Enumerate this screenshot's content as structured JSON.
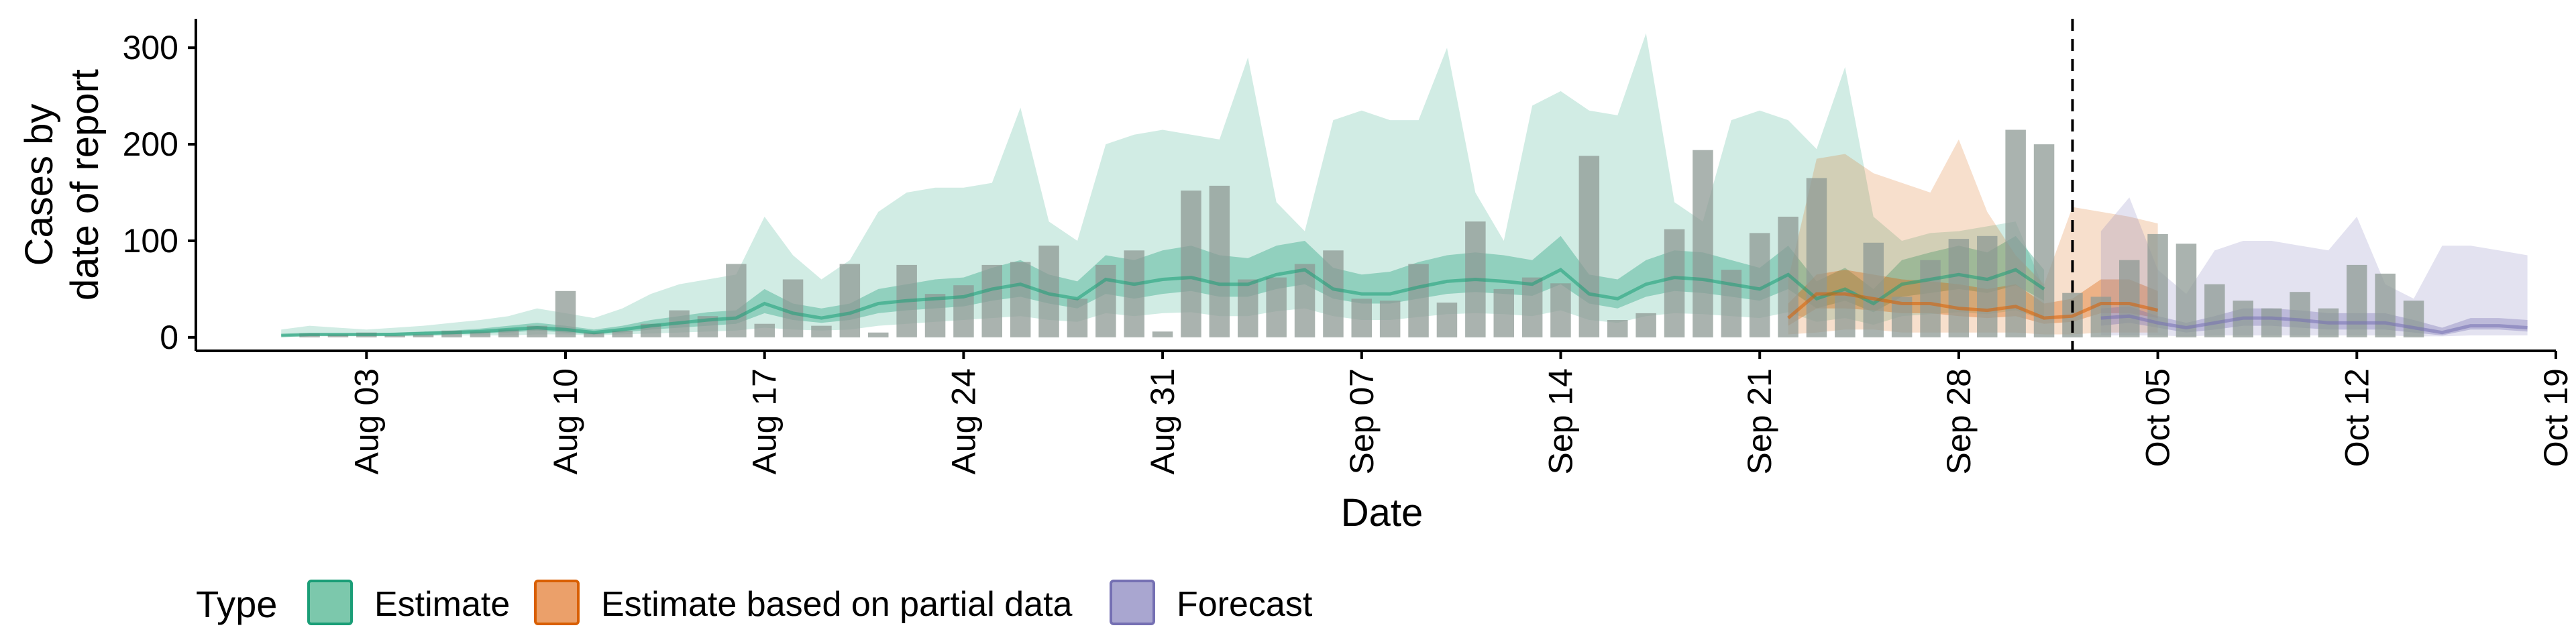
{
  "chart_data": {
    "type": "area",
    "xlabel": "Date",
    "ylabel": [
      "Cases by",
      "date of report"
    ],
    "ylim": [
      -14,
      330
    ],
    "y_ticks": [
      0,
      100,
      200,
      300
    ],
    "x_ticks": [
      {
        "date": "2020-08-03",
        "label": "Aug 03"
      },
      {
        "date": "2020-08-10",
        "label": "Aug 10"
      },
      {
        "date": "2020-08-17",
        "label": "Aug 17"
      },
      {
        "date": "2020-08-24",
        "label": "Aug 24"
      },
      {
        "date": "2020-08-31",
        "label": "Aug 31"
      },
      {
        "date": "2020-09-07",
        "label": "Sep 07"
      },
      {
        "date": "2020-09-14",
        "label": "Sep 14"
      },
      {
        "date": "2020-09-21",
        "label": "Sep 21"
      },
      {
        "date": "2020-09-28",
        "label": "Sep 28"
      },
      {
        "date": "2020-10-05",
        "label": "Oct 05"
      },
      {
        "date": "2020-10-12",
        "label": "Oct 12"
      },
      {
        "date": "2020-10-19",
        "label": "Oct 19"
      }
    ],
    "xlim": [
      "2020-07-28",
      "2020-10-19"
    ],
    "vline_date": "2020-10-02",
    "grid": false,
    "legend": {
      "title": "Type",
      "placement": "bottom",
      "items": [
        {
          "label": "Estimate",
          "fill": "#7cc8ac",
          "stroke": "#1b9e77"
        },
        {
          "label": "Estimate based on partial data",
          "fill": "#eba06a",
          "stroke": "#d95f02"
        },
        {
          "label": "Forecast",
          "fill": "#a9a6d0",
          "stroke": "#7570b3"
        }
      ]
    },
    "colors": {
      "estimate": "#1b9e77",
      "partial": "#d95f02",
      "forecast": "#7570b3",
      "bars": "#8e9a94"
    },
    "reported_cases": {
      "start": "2020-08-01",
      "values": [
        4,
        3,
        5,
        2,
        3,
        7,
        6,
        8,
        12,
        48,
        5,
        7,
        14,
        28,
        22,
        76,
        14,
        60,
        12,
        76,
        5,
        75,
        45,
        54,
        75,
        78,
        95,
        40,
        75,
        90,
        6,
        152,
        157,
        60,
        62,
        76,
        90,
        40,
        38,
        76,
        36,
        120,
        50,
        62,
        56,
        188,
        18,
        25,
        112,
        194,
        70,
        108,
        125,
        165,
        48,
        98,
        42,
        80,
        102,
        105,
        215,
        200,
        46,
        42,
        80,
        107,
        97,
        55,
        38,
        30,
        47,
        30,
        75,
        66,
        38
      ]
    },
    "series": [
      {
        "name": "Estimate",
        "start": "2020-07-31",
        "median": [
          2,
          3,
          3,
          3,
          3,
          4,
          5,
          6,
          8,
          10,
          8,
          5,
          8,
          12,
          15,
          18,
          20,
          35,
          25,
          20,
          25,
          35,
          38,
          40,
          42,
          50,
          55,
          45,
          40,
          60,
          55,
          60,
          62,
          55,
          55,
          65,
          70,
          50,
          45,
          45,
          52,
          58,
          60,
          58,
          55,
          70,
          45,
          40,
          55,
          62,
          60,
          55,
          50,
          65,
          40,
          50,
          35,
          55,
          60,
          65,
          60,
          70,
          50
        ],
        "q25": [
          1,
          2,
          2,
          2,
          2,
          3,
          3,
          4,
          5,
          7,
          5,
          3,
          5,
          8,
          10,
          12,
          14,
          25,
          18,
          15,
          18,
          25,
          28,
          30,
          32,
          38,
          42,
          35,
          30,
          45,
          40,
          45,
          48,
          42,
          42,
          50,
          55,
          40,
          35,
          35,
          40,
          45,
          47,
          45,
          43,
          55,
          35,
          30,
          42,
          48,
          46,
          42,
          38,
          50,
          30,
          38,
          26,
          42,
          46,
          50,
          46,
          54,
          38
        ],
        "q75": [
          3,
          4,
          4,
          4,
          5,
          6,
          7,
          9,
          12,
          15,
          12,
          8,
          12,
          18,
          22,
          26,
          28,
          50,
          35,
          30,
          35,
          50,
          55,
          60,
          62,
          72,
          80,
          65,
          58,
          85,
          80,
          90,
          95,
          85,
          82,
          95,
          100,
          72,
          65,
          68,
          78,
          85,
          88,
          85,
          80,
          105,
          65,
          60,
          80,
          90,
          88,
          80,
          72,
          95,
          58,
          72,
          50,
          80,
          88,
          95,
          88,
          105,
          70
        ],
        "q05": [
          0,
          1,
          1,
          1,
          1,
          1,
          2,
          2,
          2,
          3,
          3,
          2,
          3,
          4,
          5,
          6,
          7,
          10,
          8,
          7,
          8,
          12,
          14,
          16,
          18,
          20,
          22,
          18,
          16,
          25,
          22,
          25,
          26,
          22,
          22,
          27,
          30,
          22,
          18,
          18,
          21,
          24,
          25,
          24,
          22,
          28,
          18,
          15,
          22,
          25,
          24,
          22,
          20,
          26,
          16,
          20,
          13,
          22,
          24,
          26,
          24,
          28,
          18
        ],
        "q95": [
          8,
          12,
          10,
          8,
          10,
          12,
          15,
          18,
          22,
          30,
          25,
          20,
          30,
          45,
          55,
          60,
          65,
          125,
          85,
          60,
          80,
          130,
          150,
          155,
          155,
          160,
          238,
          120,
          100,
          200,
          210,
          215,
          210,
          205,
          290,
          140,
          110,
          225,
          235,
          225,
          225,
          300,
          150,
          100,
          240,
          255,
          235,
          230,
          315,
          140,
          120,
          225,
          235,
          225,
          195,
          280,
          125,
          100,
          108,
          110,
          115,
          120,
          50
        ]
      },
      {
        "name": "Estimate based on partial data",
        "start": "2020-09-22",
        "median": [
          20,
          45,
          45,
          40,
          35,
          35,
          30,
          28,
          32,
          20,
          22,
          35,
          35,
          28
        ],
        "q25": [
          12,
          30,
          30,
          28,
          25,
          25,
          22,
          20,
          22,
          14,
          16,
          25,
          25,
          20
        ],
        "q75": [
          35,
          65,
          70,
          65,
          60,
          58,
          55,
          50,
          55,
          35,
          40,
          60,
          60,
          48
        ],
        "q05": [
          3,
          5,
          8,
          8,
          5,
          5,
          5,
          5,
          5,
          3,
          3,
          5,
          5,
          5
        ],
        "q95": [
          60,
          185,
          190,
          170,
          160,
          150,
          205,
          130,
          85,
          55,
          135,
          130,
          125,
          118
        ]
      },
      {
        "name": "Forecast",
        "start": "2020-10-03",
        "median": [
          20,
          22,
          15,
          10,
          15,
          20,
          20,
          18,
          15,
          15,
          15,
          10,
          5,
          12,
          12,
          10
        ],
        "q25": [
          12,
          15,
          10,
          5,
          8,
          12,
          12,
          10,
          8,
          8,
          8,
          5,
          2,
          8,
          8,
          6
        ],
        "q75": [
          30,
          32,
          22,
          15,
          22,
          30,
          30,
          28,
          25,
          25,
          25,
          18,
          10,
          20,
          20,
          18
        ],
        "q05": [
          2,
          2,
          2,
          1,
          2,
          2,
          2,
          2,
          2,
          2,
          2,
          1,
          1,
          2,
          2,
          2
        ],
        "q95": [
          110,
          145,
          70,
          45,
          90,
          100,
          100,
          95,
          90,
          125,
          55,
          40,
          95,
          95,
          90,
          85
        ]
      }
    ]
  }
}
